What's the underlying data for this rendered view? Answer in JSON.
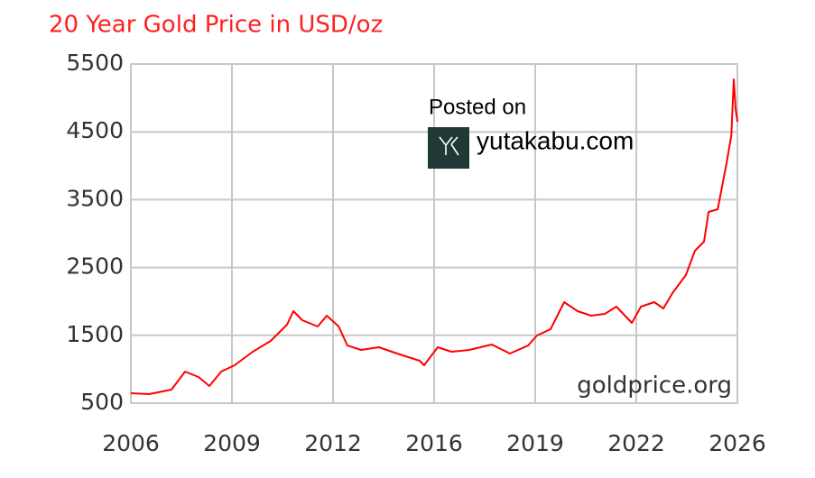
{
  "chart_data": {
    "type": "line",
    "title": "20 Year Gold Price in USD/oz",
    "annotations": {
      "source": "goldprice.org",
      "posted": "Posted on",
      "site": "yutakabu.com"
    },
    "x": [
      2006.0,
      2006.6,
      2007.34,
      2007.79,
      2008.23,
      2008.59,
      2008.98,
      2009.42,
      2010.02,
      2010.61,
      2011.15,
      2011.36,
      2011.65,
      2012.16,
      2012.46,
      2012.85,
      2013.14,
      2013.59,
      2014.18,
      2014.78,
      2015.52,
      2015.67,
      2016.12,
      2016.57,
      2017.16,
      2017.9,
      2018.5,
      2019.1,
      2019.39,
      2019.84,
      2020.29,
      2020.73,
      2021.18,
      2021.63,
      2022.01,
      2022.52,
      2022.82,
      2023.26,
      2023.56,
      2023.86,
      2024.3,
      2024.6,
      2024.9,
      2025.05,
      2025.35,
      2025.65,
      2025.8,
      2025.88,
      2025.94,
      2026.0
    ],
    "series": [
      {
        "color": "#ff0000",
        "values": [
          646,
          633,
          700,
          965,
          886,
          753,
          965,
          1059,
          1258,
          1418,
          1657,
          1856,
          1723,
          1630,
          1790,
          1630,
          1350,
          1285,
          1324,
          1231,
          1125,
          1059,
          1324,
          1258,
          1285,
          1364,
          1231,
          1350,
          1497,
          1590,
          1989,
          1856,
          1790,
          1816,
          1923,
          1684,
          1923,
          1989,
          1896,
          2122,
          2388,
          2747,
          2880,
          3319,
          3359,
          4051,
          4450,
          5274,
          4849,
          4649
        ]
      }
    ],
    "xlim": [
      2006,
      2026
    ],
    "xticks": [
      2006,
      {
        "value": 2009.333,
        "label": "2009"
      },
      {
        "value": 2012.667,
        "label": "2012"
      },
      2016,
      {
        "value": 2019.333,
        "label": "2019"
      },
      {
        "value": 2022.667,
        "label": "2022"
      },
      2026
    ],
    "ylim": [
      500,
      5500
    ],
    "yticks": [
      500,
      1500,
      2500,
      3500,
      4500,
      5500
    ],
    "grid": true
  }
}
